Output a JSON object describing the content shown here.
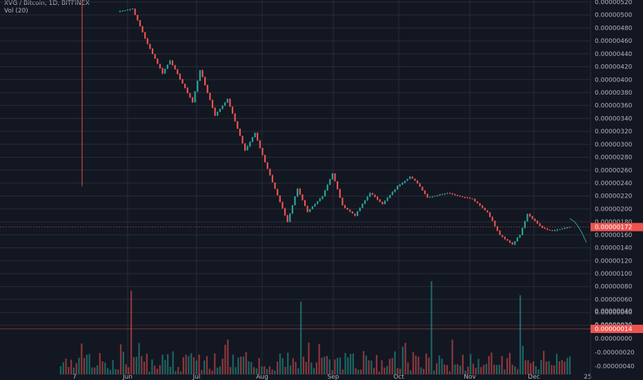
{
  "header": {
    "symbol_line": "XVG / Bitcoin, 1D, BITFINEX",
    "volume_line": "Vol (20)"
  },
  "colors": {
    "background": "#131722",
    "grid": "#2a2e39",
    "up": "#26a69a",
    "down": "#ef5350",
    "up_volume": "#26a69a",
    "down_volume": "#ef5350",
    "forecast": "#26a69a",
    "price_tag": "#ef5350"
  },
  "chart_data": [
    {
      "type": "candlestick",
      "x_ticks": [
        "7",
        "Jun",
        "Jul",
        "Aug",
        "Sep",
        "Oct",
        "Nov",
        "Dec",
        "25"
      ],
      "y_ticks": [
        "0.00000520",
        "0.00000500",
        "0.00000480",
        "0.00000460",
        "0.00000440",
        "0.00000420",
        "0.00000400",
        "0.00000380",
        "0.00000360",
        "0.00000340",
        "0.00000320",
        "0.00000300",
        "0.00000280",
        "0.00000260",
        "0.00000240",
        "0.00000220",
        "0.00000200",
        "0.00000180",
        "0.00000160",
        "0.00000140",
        "0.00000120",
        "0.00000100",
        "0.00000080",
        "0.00000060",
        "0.00000040",
        "0.00000020"
      ],
      "y_range": [
        1.5e-07,
        5.25e-06
      ],
      "current_price_label": "0.00000172",
      "early_wick": {
        "high": 5.25e-06,
        "low": 2.35e-06
      },
      "segments": [
        {
          "start": 5.05e-06,
          "end": 5.1e-06,
          "n": 6
        },
        {
          "start": 5.1e-06,
          "end": 4.55e-06,
          "n": 6
        },
        {
          "start": 4.55e-06,
          "end": 4.1e-06,
          "n": 6
        },
        {
          "start": 4.1e-06,
          "end": 4.3e-06,
          "n": 3
        },
        {
          "start": 4.3e-06,
          "end": 3.65e-06,
          "n": 9
        },
        {
          "start": 3.65e-06,
          "end": 4.15e-06,
          "n": 3
        },
        {
          "start": 4.15e-06,
          "end": 3.45e-06,
          "n": 6
        },
        {
          "start": 3.45e-06,
          "end": 3.7e-06,
          "n": 5
        },
        {
          "start": 3.7e-06,
          "end": 2.9e-06,
          "n": 7
        },
        {
          "start": 2.9e-06,
          "end": 3.18e-06,
          "n": 4
        },
        {
          "start": 3.18e-06,
          "end": 2.72e-06,
          "n": 4
        },
        {
          "start": 2.72e-06,
          "end": 1.8e-06,
          "n": 9
        },
        {
          "start": 1.8e-06,
          "end": 2.32e-06,
          "n": 4
        },
        {
          "start": 2.32e-06,
          "end": 1.95e-06,
          "n": 4
        },
        {
          "start": 1.95e-06,
          "end": 2.2e-06,
          "n": 6
        },
        {
          "start": 2.2e-06,
          "end": 2.55e-06,
          "n": 4
        },
        {
          "start": 2.55e-06,
          "end": 2.05e-06,
          "n": 4
        },
        {
          "start": 2.05e-06,
          "end": 1.9e-06,
          "n": 5
        },
        {
          "start": 1.9e-06,
          "end": 2.25e-06,
          "n": 6
        },
        {
          "start": 2.25e-06,
          "end": 2.08e-06,
          "n": 5
        },
        {
          "start": 2.08e-06,
          "end": 2.35e-06,
          "n": 6
        },
        {
          "start": 2.35e-06,
          "end": 2.5e-06,
          "n": 5
        },
        {
          "start": 2.5e-06,
          "end": 2.4e-06,
          "n": 3
        },
        {
          "start": 2.4e-06,
          "end": 2.18e-06,
          "n": 4
        },
        {
          "start": 2.18e-06,
          "end": 2.25e-06,
          "n": 8
        },
        {
          "start": 2.25e-06,
          "end": 2.15e-06,
          "n": 10
        },
        {
          "start": 2.15e-06,
          "end": 1.95e-06,
          "n": 6
        },
        {
          "start": 1.95e-06,
          "end": 1.6e-06,
          "n": 5
        },
        {
          "start": 1.6e-06,
          "end": 1.45e-06,
          "n": 5
        },
        {
          "start": 1.45e-06,
          "end": 1.6e-06,
          "n": 3
        },
        {
          "start": 1.6e-06,
          "end": 1.92e-06,
          "n": 3
        },
        {
          "start": 1.92e-06,
          "end": 1.7e-06,
          "n": 6
        },
        {
          "start": 1.7e-06,
          "end": 1.66e-06,
          "n": 4
        },
        {
          "start": 1.66e-06,
          "end": 1.72e-06,
          "n": 7
        }
      ],
      "forecast": [
        1.85e-06,
        1.81e-06,
        1.73e-06,
        1.62e-06,
        1.48e-06
      ]
    },
    {
      "type": "bar",
      "title": "Vol (20)",
      "y_ticks": [
        "0.00000040",
        "0.00000020",
        "0.00000000",
        "-0.00000020",
        "-0.00000040"
      ],
      "value_label": "0.00000014",
      "tall_spikes": [
        {
          "day": 27,
          "value": 0.9,
          "up": false
        },
        {
          "day": 92,
          "value": 0.78,
          "up": true
        },
        {
          "day": 142,
          "value": 1.0,
          "up": true
        },
        {
          "day": 176,
          "value": 0.85,
          "up": true
        }
      ]
    }
  ]
}
